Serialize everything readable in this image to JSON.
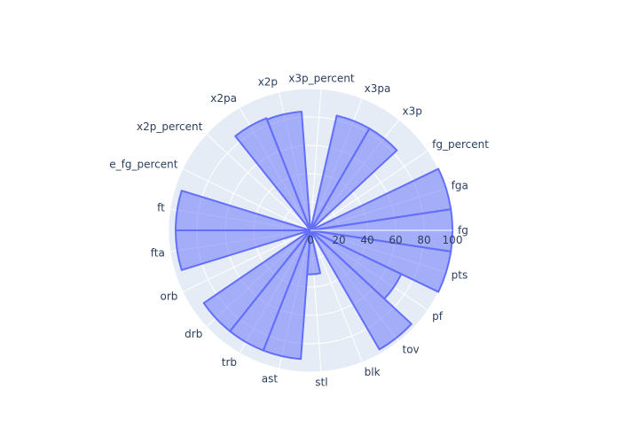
{
  "chart_data": {
    "type": "polar-area",
    "categories": [
      "fg",
      "fga",
      "fg_percent",
      "x3p",
      "x3pa",
      "x3p_percent",
      "x2p",
      "x2pa",
      "x2p_percent",
      "e_fg_percent",
      "ft",
      "fta",
      "orb",
      "drb",
      "trb",
      "ast",
      "stl",
      "blk",
      "tov",
      "pf",
      "pts"
    ],
    "series": [
      {
        "values": [
          100,
          100,
          0,
          83,
          83,
          0,
          84,
          85,
          0,
          0,
          95,
          95,
          1,
          91,
          91,
          91,
          31,
          1,
          97,
          71,
          100
        ]
      }
    ],
    "radial_axis": {
      "range": [
        0,
        100
      ],
      "tick_labels": [
        "0",
        "20",
        "40",
        "60",
        "80",
        "100"
      ]
    },
    "colors": {
      "fill": "#636efa",
      "plot_bg": "#e5ecf6",
      "grid": "#ffffff",
      "text": "#2a3f5f"
    }
  }
}
